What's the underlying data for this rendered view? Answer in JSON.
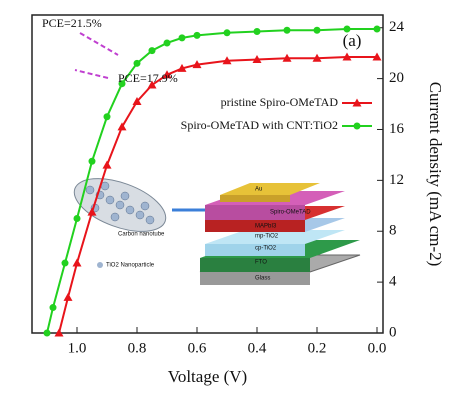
{
  "chart_data": {
    "type": "line",
    "label": "(a)",
    "xlabel": "Voltage (V)",
    "ylabel": "Current density (mA cm-2)",
    "xlim": [
      -0.02,
      1.15
    ],
    "x_reversed": true,
    "xticks": [
      {
        "value": 0,
        "label": "0.0"
      },
      0.2,
      0.4,
      0.6,
      0.8,
      {
        "value": 1,
        "label": "1.0"
      }
    ],
    "ylim": [
      0,
      25
    ],
    "y_axis_side": "right",
    "yticks": [
      0,
      4,
      8,
      12,
      16,
      20,
      24
    ],
    "series": [
      {
        "name": "pristine Spiro-OMeTAD",
        "color": "#e8141b",
        "marker": "triangle",
        "x": [
          0,
          0.1,
          0.2,
          0.3,
          0.4,
          0.5,
          0.6,
          0.65,
          0.7,
          0.75,
          0.8,
          0.85,
          0.9,
          0.95,
          1.0,
          1.03,
          1.06
        ],
        "values": [
          21.7,
          21.7,
          21.6,
          21.6,
          21.5,
          21.4,
          21.1,
          20.8,
          20.3,
          19.5,
          18.2,
          16.2,
          13.2,
          9.5,
          5.5,
          2.8,
          0
        ]
      },
      {
        "name": "Spiro-OMeTAD with CNT:TiO2",
        "color": "#22d11f",
        "marker": "circle",
        "x": [
          0,
          0.1,
          0.2,
          0.3,
          0.4,
          0.5,
          0.6,
          0.65,
          0.7,
          0.75,
          0.8,
          0.85,
          0.9,
          0.95,
          1.0,
          1.04,
          1.08,
          1.1
        ],
        "values": [
          23.9,
          23.9,
          23.8,
          23.8,
          23.7,
          23.6,
          23.4,
          23.2,
          22.8,
          22.2,
          21.2,
          19.6,
          17.0,
          13.5,
          9.0,
          5.5,
          2.0,
          0
        ]
      }
    ],
    "annotations": [
      "PCE=21.5%",
      "PCE=17.9%"
    ],
    "inset_labels": [
      "Au",
      "Spiro-OMeTAD",
      "MAPbI3",
      "mp-TiO2",
      "cp-TiO2",
      "FTO",
      "Glass",
      "Carbon nanotube",
      "TiO2 Nanoparticle"
    ]
  }
}
